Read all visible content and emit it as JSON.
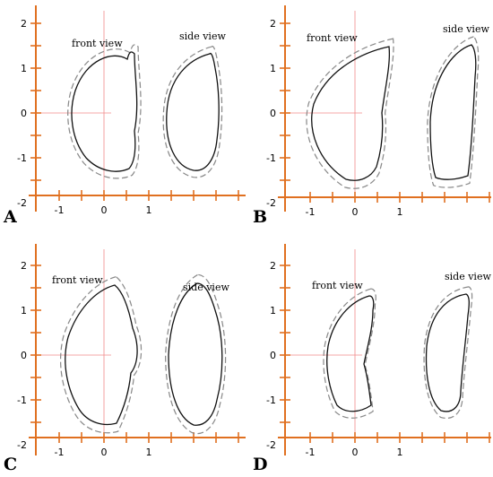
{
  "colors": {
    "axis": "#e07020",
    "crosshair": "#f08a8a",
    "outline_solid": "#111111",
    "outline_dashed": "#8a8a8a"
  },
  "x_tick_labels": [
    "-1",
    "0",
    "1"
  ],
  "y_tick_labels": [
    "2",
    "1",
    "0",
    "-1",
    "-2"
  ],
  "panels": [
    {
      "letter": "A",
      "front_label": "front view",
      "side_label": "side view"
    },
    {
      "letter": "B",
      "front_label": "front view",
      "side_label": "side view"
    },
    {
      "letter": "C",
      "front_label": "front view",
      "side_label": "side view"
    },
    {
      "letter": "D",
      "front_label": "front view",
      "side_label": "side view"
    }
  ]
}
